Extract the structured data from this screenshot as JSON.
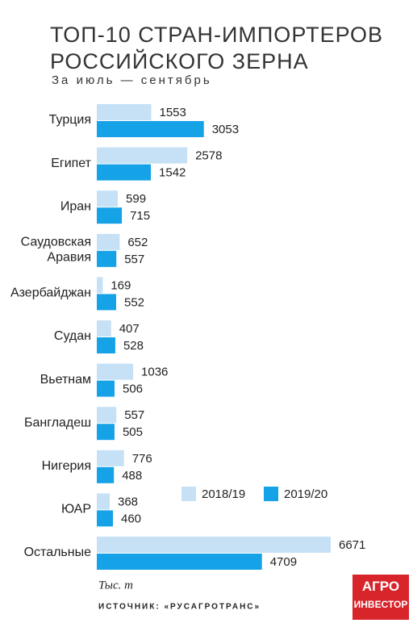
{
  "chart_data": {
    "type": "bar",
    "orientation": "horizontal",
    "title": "ТОП-10 СТРАН-ИМПОРТЕРОВ\nРОССИЙСКОГО ЗЕРНА",
    "subtitle": "За июль — сентябрь",
    "categories": [
      "Турция",
      "Египет",
      "Иран",
      "Саудовская\nАравия",
      "Азербайджан",
      "Судан",
      "Вьетнам",
      "Бангладеш",
      "Нигерия",
      "ЮАР",
      "Остальные"
    ],
    "series": [
      {
        "name": "2018/19",
        "color": "#c6e1f6",
        "values": [
          1553,
          2578,
          599,
          652,
          169,
          407,
          1036,
          557,
          776,
          368,
          6671
        ]
      },
      {
        "name": "2019/20",
        "color": "#16a2e6",
        "values": [
          3053,
          1542,
          715,
          557,
          552,
          528,
          506,
          505,
          488,
          460,
          4709
        ]
      }
    ],
    "unit": "Тыс. т",
    "source": "ИСТОЧНИК: «РУСАГРОТРАНС»",
    "logo": "АГРО\nИНВЕСТОР"
  }
}
